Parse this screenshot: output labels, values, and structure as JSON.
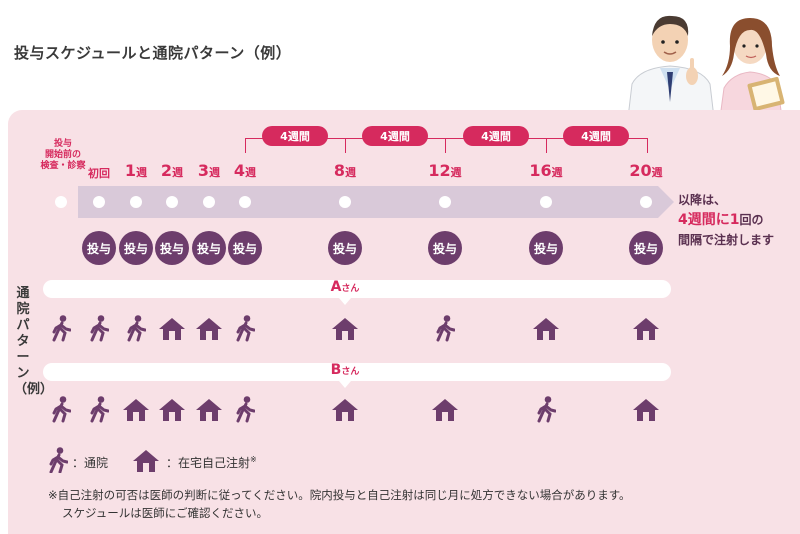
{
  "title": "投与スケジュールと通院パターン（例）",
  "interval_labels": [
    "4週間",
    "4週間",
    "4週間",
    "4週間"
  ],
  "weeks": {
    "pre": "投与\n開始前の\n検査・診察",
    "first": "初回",
    "w1": "1",
    "w2": "2",
    "w3": "3",
    "w4": "4",
    "w8": "8",
    "w12": "12",
    "w16": "16",
    "w20": "20",
    "unit": "週"
  },
  "admin_label": "投与",
  "after_text": {
    "line1": "以降は、",
    "line2a": "4週間に",
    "line2b": "1",
    "line2c": "回の",
    "line3": "間隔で注射します"
  },
  "pattern_label": "通院パターン（例）",
  "patients": [
    {
      "name": "A",
      "suffix": "さん"
    },
    {
      "name": "B",
      "suffix": "さん"
    }
  ],
  "legend": {
    "visit": "：通院",
    "home": "：在宅自己注射",
    "mark": "※"
  },
  "notes": [
    "※自己注射の可否は医師の判断に従ってください。院内投与と自己注射は同じ月に処方できない場合があります。",
    "スケジュールは医師にご確認ください。"
  ],
  "colors": {
    "accent": "#d62a5e",
    "purple": "#6d3d6c",
    "panel": "#f8e1e6",
    "timeline": "#d9c9d9"
  },
  "icons": [
    "walking-person-icon",
    "house-icon",
    "doctor-illustration",
    "nurse-illustration"
  ]
}
